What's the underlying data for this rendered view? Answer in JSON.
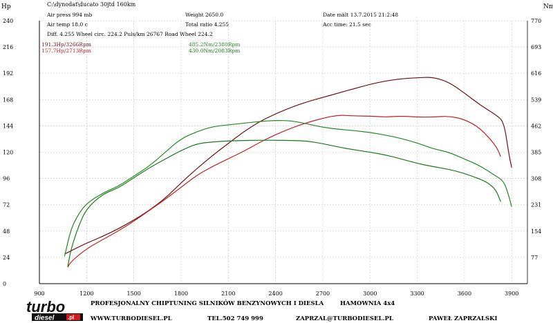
{
  "header": {
    "y_unit_left": "Hp",
    "y_unit_right": "Nm",
    "file_path": "C:\\dynodat\\ducato 30jtd 160km",
    "air_press": "Air press  994 mb",
    "air_temp": "Air temp  18.0 c",
    "diff": "Diff.   4.255   Wheel circ. 224.2   Puls/km   26767   Road Wheel 224.2",
    "weight": "Weight   2650.0",
    "total_ratio": "Total ratio 4.255",
    "date": "Date mält 13.7.2015 21:2:48",
    "acc_time": "Acc time:  21.5 sec"
  },
  "peaks": {
    "hp_after": "191.3Hp/3266Rpm",
    "hp_before": "157.7Hp/2713Rpm",
    "nm_after": "485.2Nm/2380Rpm",
    "nm_before": "430.0Nm/2083Rpm"
  },
  "colors": {
    "hp_after": "#6b0f12",
    "hp_before": "#c0201e",
    "nm_after": "#1f8a1f",
    "nm_before": "#1a7a1a",
    "grid": "#c8c8c8"
  },
  "footer": {
    "logo_top": "turbo",
    "logo_bottom": "diesel",
    "logo_pl": ".pl",
    "tagline": "PROFESJONALNY CHIPTUNING SILNIKÓW BENZYNOWYCH I DIESLA",
    "hamownia": "HAMOWNIA 4x4",
    "website": "WWW.TURBODIESEL.PL",
    "phone": "TEL.502 749 999",
    "email": "ZAPRZAL@TURBODIESEL.PL",
    "name": "PAWEŁ ZAPRZALSKI"
  },
  "chart_data": {
    "type": "line",
    "title": "",
    "xlabel": "",
    "ylabel_left": "Hp",
    "ylabel_right": "Nm",
    "xlim": [
      900,
      4000
    ],
    "ylim_left": [
      0,
      240
    ],
    "ylim_right": [
      0,
      770
    ],
    "x_ticks": [
      "900",
      "1200",
      "1500",
      "1800",
      "2100",
      "2400",
      "2700",
      "3000",
      "3300",
      "3600",
      "3900"
    ],
    "y_ticks_left": [
      "0",
      "24",
      "48",
      "72",
      "96",
      "120",
      "144",
      "168",
      "192",
      "216",
      "240"
    ],
    "y_ticks_right": [
      "77",
      "154",
      "231",
      "308",
      "385",
      "462",
      "539",
      "616",
      "693",
      "770"
    ],
    "grid": true,
    "series": [
      {
        "name": "191.3Hp/3266Rpm",
        "axis": "left",
        "color": "#6b0f12",
        "points": [
          [
            1060,
            27
          ],
          [
            1100,
            30
          ],
          [
            1200,
            37
          ],
          [
            1300,
            43
          ],
          [
            1400,
            50
          ],
          [
            1500,
            58
          ],
          [
            1600,
            67
          ],
          [
            1700,
            78
          ],
          [
            1800,
            92
          ],
          [
            1900,
            105
          ],
          [
            2000,
            117
          ],
          [
            2100,
            128
          ],
          [
            2200,
            139
          ],
          [
            2300,
            148
          ],
          [
            2400,
            155
          ],
          [
            2500,
            161
          ],
          [
            2600,
            166
          ],
          [
            2700,
            170
          ],
          [
            2800,
            174
          ],
          [
            2900,
            178
          ],
          [
            3000,
            182
          ],
          [
            3100,
            185
          ],
          [
            3200,
            187
          ],
          [
            3300,
            188
          ],
          [
            3400,
            188.5
          ],
          [
            3500,
            184
          ],
          [
            3600,
            174
          ],
          [
            3700,
            163
          ],
          [
            3800,
            154
          ],
          [
            3850,
            148
          ],
          [
            3880,
            120
          ],
          [
            3900,
            106
          ]
        ]
      },
      {
        "name": "157.7Hp/2713Rpm",
        "axis": "left",
        "color": "#c0201e",
        "points": [
          [
            1080,
            15
          ],
          [
            1100,
            20
          ],
          [
            1200,
            32
          ],
          [
            1300,
            40
          ],
          [
            1400,
            48
          ],
          [
            1500,
            57
          ],
          [
            1600,
            67
          ],
          [
            1700,
            77
          ],
          [
            1800,
            88
          ],
          [
            1900,
            99
          ],
          [
            2000,
            107
          ],
          [
            2100,
            114
          ],
          [
            2200,
            121
          ],
          [
            2300,
            129
          ],
          [
            2400,
            136
          ],
          [
            2500,
            142
          ],
          [
            2600,
            147
          ],
          [
            2700,
            151
          ],
          [
            2800,
            154
          ],
          [
            2900,
            153
          ],
          [
            3000,
            153
          ],
          [
            3100,
            152
          ],
          [
            3200,
            153
          ],
          [
            3300,
            152
          ],
          [
            3400,
            152
          ],
          [
            3500,
            153
          ],
          [
            3600,
            150
          ],
          [
            3700,
            142
          ],
          [
            3800,
            126
          ],
          [
            3830,
            116
          ]
        ]
      },
      {
        "name": "485.2Nm/2380Rpm",
        "axis": "right",
        "color": "#1f8a1f",
        "points": [
          [
            1060,
            80
          ],
          [
            1100,
            160
          ],
          [
            1150,
            205
          ],
          [
            1200,
            235
          ],
          [
            1300,
            265
          ],
          [
            1400,
            285
          ],
          [
            1500,
            315
          ],
          [
            1600,
            345
          ],
          [
            1700,
            385
          ],
          [
            1800,
            425
          ],
          [
            1900,
            445
          ],
          [
            2000,
            460
          ],
          [
            2100,
            465
          ],
          [
            2200,
            470
          ],
          [
            2300,
            475
          ],
          [
            2400,
            478
          ],
          [
            2500,
            477
          ],
          [
            2600,
            468
          ],
          [
            2700,
            458
          ],
          [
            2800,
            452
          ],
          [
            2900,
            448
          ],
          [
            3000,
            443
          ],
          [
            3100,
            435
          ],
          [
            3200,
            425
          ],
          [
            3300,
            412
          ],
          [
            3400,
            395
          ],
          [
            3500,
            385
          ],
          [
            3600,
            365
          ],
          [
            3700,
            345
          ],
          [
            3800,
            315
          ],
          [
            3850,
            300
          ],
          [
            3880,
            260
          ],
          [
            3900,
            225
          ]
        ]
      },
      {
        "name": "430.0Nm/2083Rpm",
        "axis": "right",
        "color": "#1a7a1a",
        "points": [
          [
            1080,
            50
          ],
          [
            1100,
            100
          ],
          [
            1150,
            170
          ],
          [
            1200,
            220
          ],
          [
            1300,
            262
          ],
          [
            1400,
            280
          ],
          [
            1500,
            310
          ],
          [
            1600,
            340
          ],
          [
            1700,
            365
          ],
          [
            1800,
            390
          ],
          [
            1900,
            410
          ],
          [
            2000,
            415
          ],
          [
            2100,
            418
          ],
          [
            2200,
            419
          ],
          [
            2300,
            420
          ],
          [
            2400,
            420
          ],
          [
            2500,
            419
          ],
          [
            2600,
            418
          ],
          [
            2700,
            410
          ],
          [
            2800,
            400
          ],
          [
            2900,
            392
          ],
          [
            3000,
            385
          ],
          [
            3100,
            377
          ],
          [
            3200,
            365
          ],
          [
            3300,
            352
          ],
          [
            3400,
            343
          ],
          [
            3500,
            335
          ],
          [
            3600,
            323
          ],
          [
            3700,
            306
          ],
          [
            3750,
            295
          ],
          [
            3800,
            275
          ],
          [
            3830,
            240
          ]
        ]
      }
    ]
  }
}
